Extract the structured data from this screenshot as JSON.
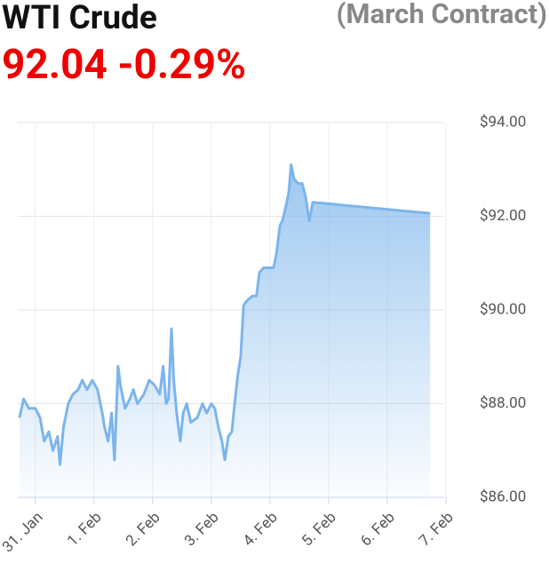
{
  "chart_data": {
    "type": "area",
    "title": "WTI Crude",
    "subtitle": "(March Contract)",
    "price": "92.04",
    "change": "-0.29%",
    "color": "#7cb5ec",
    "grid": true,
    "xlim": [
      -0.3,
      6.97
    ],
    "xticks": [
      {
        "value": 0,
        "label": "31. Jan"
      },
      {
        "value": 1,
        "label": "1. Feb"
      },
      {
        "value": 2,
        "label": "2. Feb"
      },
      {
        "value": 3,
        "label": "3. Feb"
      },
      {
        "value": 4,
        "label": "4. Feb"
      },
      {
        "value": 5,
        "label": "5. Feb"
      },
      {
        "value": 6,
        "label": "6. Feb"
      },
      {
        "value": 7,
        "label": "7. Feb"
      }
    ],
    "ylim": [
      86,
      94
    ],
    "yticks": [
      {
        "value": 86,
        "label": "$86.00"
      },
      {
        "value": 88,
        "label": "$88.00"
      },
      {
        "value": 90,
        "label": "$90.00"
      },
      {
        "value": 92,
        "label": "$92.00"
      },
      {
        "value": 94,
        "label": "$94.00"
      }
    ],
    "x": [
      -0.27,
      -0.2,
      -0.11,
      0,
      0.08,
      0.15,
      0.23,
      0.3,
      0.38,
      0.42,
      0.48,
      0.56,
      0.64,
      0.73,
      0.8,
      0.88,
      0.97,
      1.06,
      1.14,
      1.18,
      1.24,
      1.3,
      1.35,
      1.41,
      1.45,
      1.53,
      1.61,
      1.67,
      1.74,
      1.85,
      1.94,
      2.03,
      2.12,
      2.18,
      2.23,
      2.27,
      2.32,
      2.36,
      2.41,
      2.47,
      2.52,
      2.58,
      2.65,
      2.76,
      2.85,
      2.92,
      3.0,
      3.06,
      3.12,
      3.18,
      3.23,
      3.29,
      3.35,
      3.39,
      3.45,
      3.5,
      3.55,
      3.61,
      3.7,
      3.77,
      3.82,
      3.89,
      3.98,
      4.06,
      4.11,
      4.17,
      4.21,
      4.27,
      4.32,
      4.36,
      4.41,
      4.48,
      4.55,
      4.61,
      4.67,
      4.73,
      6.73
    ],
    "values": [
      87.7,
      88.1,
      87.9,
      87.9,
      87.7,
      87.2,
      87.4,
      87.0,
      87.3,
      86.7,
      87.5,
      88.0,
      88.2,
      88.3,
      88.5,
      88.3,
      88.5,
      88.3,
      87.8,
      87.5,
      87.2,
      87.8,
      86.8,
      88.8,
      88.4,
      87.9,
      88.1,
      88.3,
      88.0,
      88.2,
      88.5,
      88.4,
      88.2,
      88.8,
      88.0,
      88.1,
      89.6,
      88.5,
      87.8,
      87.2,
      87.8,
      88.0,
      87.6,
      87.7,
      88.0,
      87.8,
      88.0,
      87.9,
      87.5,
      87.2,
      86.8,
      87.3,
      87.4,
      87.9,
      88.6,
      89.0,
      90.1,
      90.2,
      90.3,
      90.3,
      90.8,
      90.9,
      90.9,
      90.9,
      91.2,
      91.8,
      91.9,
      92.2,
      92.5,
      93.1,
      92.8,
      92.7,
      92.7,
      92.4,
      91.9,
      92.3,
      92.06
    ]
  }
}
